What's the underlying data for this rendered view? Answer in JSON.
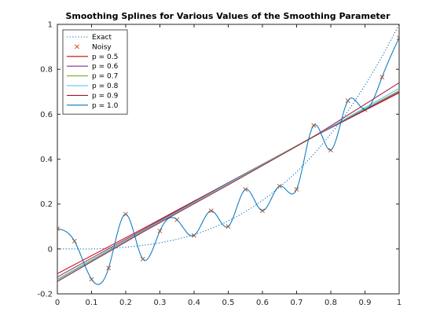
{
  "chart_data": {
    "type": "line",
    "title": "Smoothing Splines for Various Values of the Smoothing Parameter",
    "xlabel": "",
    "ylabel": "",
    "xlim": [
      0,
      1
    ],
    "ylim": [
      -0.2,
      1
    ],
    "xticks": [
      0,
      0.1,
      0.2,
      0.3,
      0.4,
      0.5,
      0.6,
      0.7,
      0.8,
      0.9,
      1
    ],
    "xtick_labels": [
      "0",
      "0.1",
      "0.2",
      "0.3",
      "0.4",
      "0.5",
      "0.6",
      "0.7",
      "0.8",
      "0.9",
      "1"
    ],
    "yticks": [
      -0.2,
      0,
      0.2,
      0.4,
      0.6,
      0.8,
      1
    ],
    "ytick_labels": [
      "-0.2",
      "0",
      "0.2",
      "0.4",
      "0.6",
      "0.8",
      "1"
    ],
    "grid": false,
    "legend_position": "top-left",
    "series": [
      {
        "name": "Exact",
        "kind": "dotted-line",
        "color": "#0072BD",
        "x": [
          0,
          0.05,
          0.1,
          0.15,
          0.2,
          0.25,
          0.3,
          0.35,
          0.4,
          0.45,
          0.5,
          0.55,
          0.6,
          0.65,
          0.7,
          0.75,
          0.8,
          0.85,
          0.9,
          0.95,
          1
        ],
        "y": [
          0,
          0,
          0,
          0.003,
          0.008,
          0.016,
          0.027,
          0.043,
          0.064,
          0.091,
          0.125,
          0.166,
          0.216,
          0.275,
          0.343,
          0.422,
          0.512,
          0.614,
          0.729,
          0.857,
          1.0
        ]
      },
      {
        "name": "Noisy",
        "kind": "markers",
        "color": "#D95319",
        "x": [
          0,
          0.05,
          0.1,
          0.15,
          0.2,
          0.25,
          0.3,
          0.35,
          0.4,
          0.45,
          0.5,
          0.55,
          0.6,
          0.65,
          0.7,
          0.75,
          0.8,
          0.85,
          0.9,
          0.95,
          1
        ],
        "y": [
          0.09,
          0.035,
          -0.135,
          -0.085,
          0.155,
          -0.045,
          0.08,
          0.13,
          0.06,
          0.17,
          0.1,
          0.265,
          0.17,
          0.28,
          0.265,
          0.55,
          0.44,
          0.66,
          0.62,
          0.765,
          0.94
        ]
      },
      {
        "name": "p = 0.5",
        "kind": "line",
        "color": "#CC0000",
        "x": [
          0,
          0.25,
          0.5,
          0.75,
          1
        ],
        "y": [
          -0.11,
          0.09,
          0.295,
          0.5,
          0.695
        ]
      },
      {
        "name": "p = 0.6",
        "kind": "line",
        "color": "#7E2F8E",
        "x": [
          0,
          0.25,
          0.5,
          0.75,
          1
        ],
        "y": [
          -0.125,
          0.085,
          0.295,
          0.5,
          0.7
        ]
      },
      {
        "name": "p = 0.7",
        "kind": "line",
        "color": "#77AC30",
        "x": [
          0,
          0.25,
          0.5,
          0.75,
          1
        ],
        "y": [
          -0.135,
          0.08,
          0.292,
          0.502,
          0.705
        ]
      },
      {
        "name": "p = 0.8",
        "kind": "line",
        "color": "#4DBEEE",
        "x": [
          0,
          0.25,
          0.5,
          0.75,
          1
        ],
        "y": [
          -0.14,
          0.078,
          0.29,
          0.5,
          0.715
        ]
      },
      {
        "name": "p = 0.9",
        "kind": "line",
        "color": "#A2142F",
        "x": [
          0,
          0.25,
          0.5,
          0.75,
          1
        ],
        "y": [
          -0.145,
          0.075,
          0.285,
          0.5,
          0.74
        ]
      },
      {
        "name": "p = 1.0",
        "kind": "line",
        "color": "#0072BD",
        "x": [
          0,
          0.05,
          0.1,
          0.15,
          0.2,
          0.25,
          0.3,
          0.35,
          0.4,
          0.45,
          0.5,
          0.55,
          0.6,
          0.65,
          0.7,
          0.75,
          0.8,
          0.85,
          0.9,
          0.95,
          1
        ],
        "y": [
          0.09,
          0.035,
          -0.135,
          -0.085,
          0.155,
          -0.045,
          0.08,
          0.13,
          0.06,
          0.17,
          0.1,
          0.265,
          0.17,
          0.28,
          0.265,
          0.55,
          0.44,
          0.66,
          0.62,
          0.765,
          0.94
        ]
      }
    ]
  }
}
